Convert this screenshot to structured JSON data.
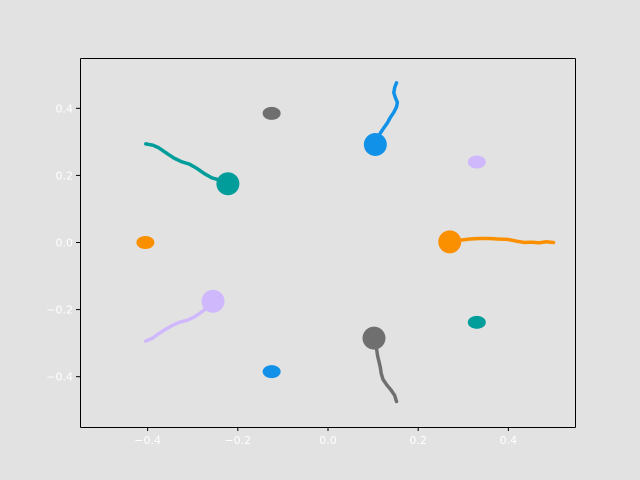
{
  "chart_data": {
    "type": "scatter",
    "title": "",
    "xlabel": "",
    "ylabel": "",
    "xlim": [
      -0.55,
      0.55
    ],
    "ylim": [
      -0.55,
      0.55
    ],
    "grid": false,
    "legend": "none",
    "x_tick_labels": [
      {
        "value": -0.4,
        "label": "−0.4"
      },
      {
        "value": -0.2,
        "label": "−0.2"
      },
      {
        "value": 0.0,
        "label": "0.0"
      },
      {
        "value": 0.2,
        "label": "0.2"
      },
      {
        "value": 0.4,
        "label": "0.4"
      }
    ],
    "y_tick_labels": [
      {
        "value": 0.4,
        "label": "0.4"
      },
      {
        "value": 0.2,
        "label": "0.2"
      },
      {
        "value": 0.0,
        "label": "0.0"
      },
      {
        "value": -0.2,
        "label": "−0.2"
      },
      {
        "value": -0.4,
        "label": "−0.4"
      }
    ],
    "agents": [
      {
        "color": "#1192e8",
        "position": [
          0.105,
          0.292
        ],
        "goal": [
          -0.125,
          -0.385
        ],
        "trail": [
          [
            0.152,
            0.476
          ],
          [
            0.148,
            0.462
          ],
          [
            0.146,
            0.447
          ],
          [
            0.149,
            0.433
          ],
          [
            0.154,
            0.418
          ],
          [
            0.152,
            0.404
          ],
          [
            0.146,
            0.388
          ],
          [
            0.138,
            0.372
          ],
          [
            0.132,
            0.357
          ],
          [
            0.124,
            0.342
          ],
          [
            0.116,
            0.326
          ],
          [
            0.11,
            0.31
          ]
        ]
      },
      {
        "color": "#009d9a",
        "position": [
          -0.222,
          0.175
        ],
        "goal": [
          0.33,
          -0.238
        ],
        "trail": [
          [
            -0.404,
            0.294
          ],
          [
            -0.388,
            0.29
          ],
          [
            -0.375,
            0.282
          ],
          [
            -0.36,
            0.268
          ],
          [
            -0.342,
            0.252
          ],
          [
            -0.325,
            0.241
          ],
          [
            -0.308,
            0.234
          ],
          [
            -0.292,
            0.222
          ],
          [
            -0.275,
            0.206
          ],
          [
            -0.258,
            0.193
          ],
          [
            -0.242,
            0.187
          ],
          [
            -0.23,
            0.18
          ]
        ]
      },
      {
        "color": "#fa9000",
        "position": [
          0.27,
          0.002
        ],
        "goal": [
          -0.405,
          0.0
        ],
        "trail": [
          [
            0.5,
            0.0
          ],
          [
            0.484,
            0.002
          ],
          [
            0.468,
            -0.001
          ],
          [
            0.452,
            0.001
          ],
          [
            0.436,
            0.0
          ],
          [
            0.418,
            0.004
          ],
          [
            0.4,
            0.009
          ],
          [
            0.38,
            0.01
          ],
          [
            0.358,
            0.012
          ],
          [
            0.335,
            0.012
          ],
          [
            0.312,
            0.01
          ],
          [
            0.29,
            0.006
          ],
          [
            0.276,
            0.004
          ]
        ]
      },
      {
        "color": "#d0b8fc",
        "position": [
          -0.255,
          -0.175
        ],
        "goal": [
          0.33,
          0.24
        ],
        "trail": [
          [
            -0.404,
            -0.294
          ],
          [
            -0.39,
            -0.286
          ],
          [
            -0.378,
            -0.274
          ],
          [
            -0.362,
            -0.26
          ],
          [
            -0.345,
            -0.247
          ],
          [
            -0.33,
            -0.238
          ],
          [
            -0.312,
            -0.232
          ],
          [
            -0.297,
            -0.222
          ],
          [
            -0.283,
            -0.21
          ],
          [
            -0.27,
            -0.196
          ],
          [
            -0.262,
            -0.184
          ]
        ]
      },
      {
        "color": "#6f6f6f",
        "position": [
          0.102,
          -0.285
        ],
        "goal": [
          -0.125,
          0.385
        ],
        "trail": [
          [
            0.152,
            -0.474
          ],
          [
            0.148,
            -0.456
          ],
          [
            0.14,
            -0.44
          ],
          [
            0.13,
            -0.424
          ],
          [
            0.122,
            -0.408
          ],
          [
            0.118,
            -0.39
          ],
          [
            0.116,
            -0.372
          ],
          [
            0.113,
            -0.355
          ],
          [
            0.11,
            -0.338
          ],
          [
            0.108,
            -0.32
          ],
          [
            0.105,
            -0.302
          ]
        ]
      }
    ]
  }
}
